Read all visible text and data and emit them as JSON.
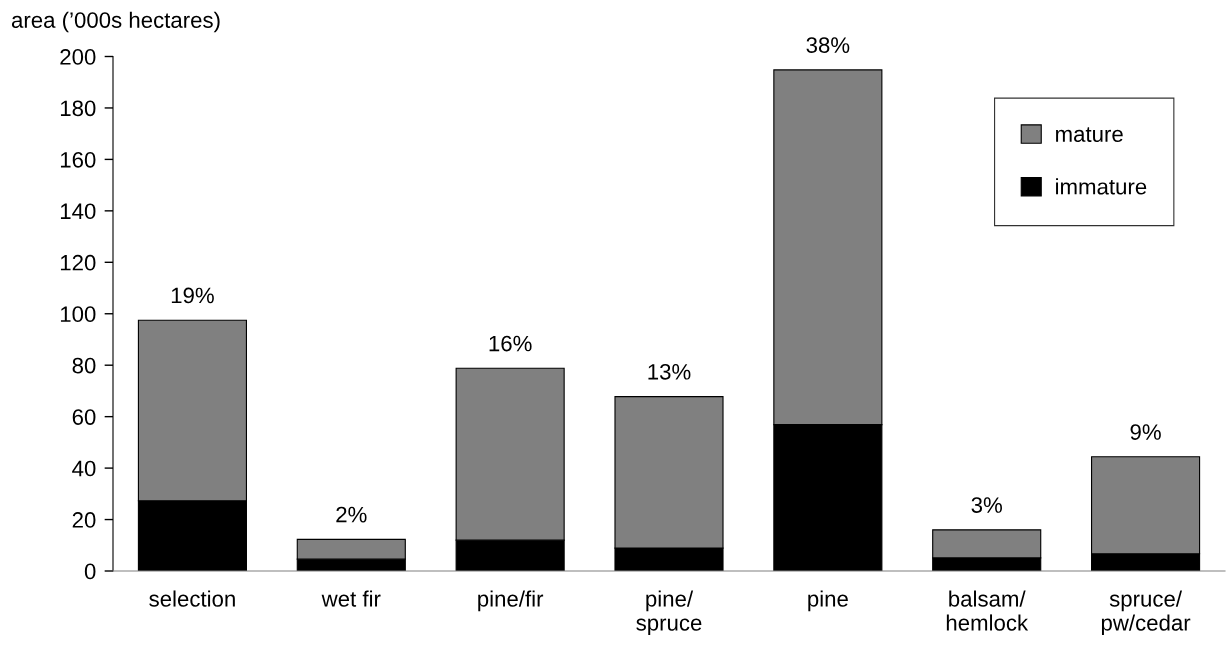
{
  "chart_data": {
    "type": "bar",
    "stacked": true,
    "ylabel": "area (’000s hectares)",
    "categories": [
      "selection",
      "wet fir",
      "pine/fir",
      "pine/\nspruce",
      "pine",
      "balsam/\nhemlock",
      "spruce/\npw/cedar"
    ],
    "series": [
      {
        "name": "immature",
        "color": "#000000",
        "values": [
          27.3,
          4.6,
          12.0,
          8.9,
          56.9,
          5.1,
          6.7
        ]
      },
      {
        "name": "mature",
        "color": "#808080",
        "values": [
          70.2,
          7.7,
          66.8,
          58.9,
          137.9,
          10.9,
          37.7
        ]
      }
    ],
    "annotations": [
      {
        "text": "19%",
        "x": "selection",
        "y": 97.5
      },
      {
        "text": "2%",
        "x": "wet fir",
        "y": 12.3
      },
      {
        "text": "16%",
        "x": "pine/fir",
        "y": 78.8
      },
      {
        "text": "13%",
        "x": "pine/\nspruce",
        "y": 67.8
      },
      {
        "text": "38%",
        "x": "pine",
        "y": 194.8
      },
      {
        "text": "3%",
        "x": "balsam/\nhemlock",
        "y": 16.0
      },
      {
        "text": "9%",
        "x": "spruce/\npw/cedar",
        "y": 44.4
      }
    ],
    "ylim": [
      0,
      200
    ],
    "yticks": [
      0,
      20,
      40,
      60,
      80,
      100,
      120,
      140,
      160,
      180,
      200
    ],
    "grid": false,
    "legend": "top right"
  }
}
